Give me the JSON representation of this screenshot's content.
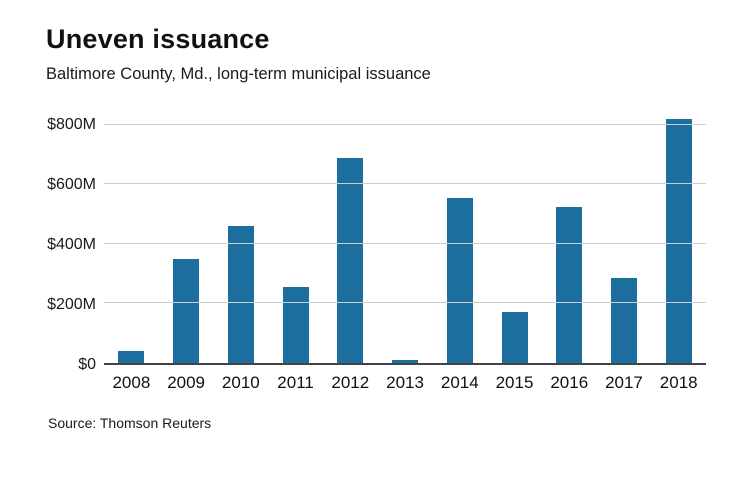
{
  "header": {
    "title": "Uneven issuance",
    "subtitle": "Baltimore County, Md., long-term municipal issuance"
  },
  "footer": {
    "source": "Source: Thomson Reuters"
  },
  "chart_data": {
    "type": "bar",
    "title": "Uneven issuance",
    "subtitle": "Baltimore County, Md., long-term municipal issuance",
    "categories": [
      "2008",
      "2009",
      "2010",
      "2011",
      "2012",
      "2013",
      "2014",
      "2015",
      "2016",
      "2017",
      "2018"
    ],
    "values": [
      40,
      350,
      460,
      255,
      690,
      10,
      555,
      170,
      525,
      285,
      820
    ],
    "xlabel": "",
    "ylabel": "",
    "ylim": [
      0,
      850
    ],
    "yticks": [
      0,
      200,
      400,
      600,
      800
    ],
    "ytick_labels": [
      "$0",
      "$200M",
      "$400M",
      "$600M",
      "$800M"
    ],
    "bar_color": "#1c6e9e",
    "grid": true,
    "legend": "none",
    "source": "Source: Thomson Reuters"
  }
}
